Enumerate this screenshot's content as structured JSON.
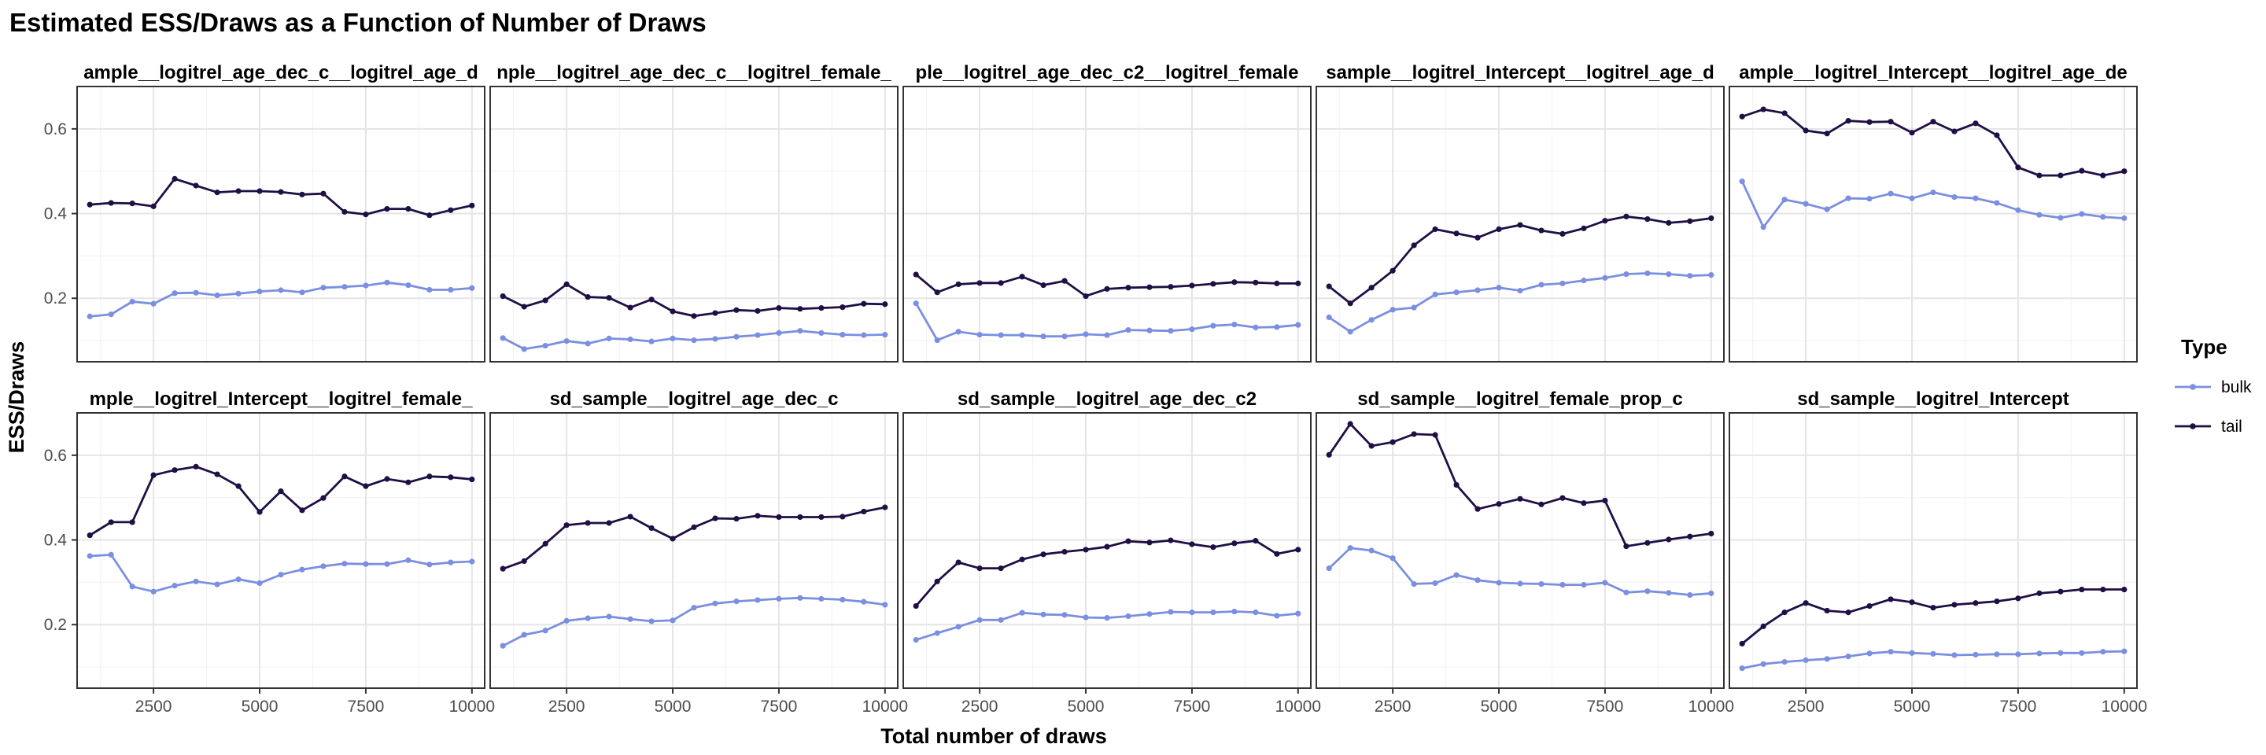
{
  "chart_data": {
    "type": "line",
    "title": "Estimated ESS/Draws as a Function of Number of Draws",
    "xlabel": "Total number of draws",
    "ylabel": "ESS/Draws",
    "x": [
      1000,
      1500,
      2000,
      2500,
      3000,
      3500,
      4000,
      4500,
      5000,
      5500,
      6000,
      6500,
      7000,
      7500,
      8000,
      8500,
      9000,
      9500,
      10000
    ],
    "xlim": [
      700,
      10300
    ],
    "ylim": [
      0.05,
      0.7
    ],
    "x_ticks": [
      2500,
      5000,
      7500,
      10000
    ],
    "y_ticks": [
      0.2,
      0.4,
      0.6
    ],
    "grid": true,
    "legend": {
      "title": "Type",
      "position": "right",
      "entries": [
        {
          "name": "bulk",
          "color": "#7b8fe0"
        },
        {
          "name": "tail",
          "color": "#1f0f45"
        }
      ]
    },
    "panels": [
      {
        "label": "ample__logitrel_age_dec_c__logitrel_age_d",
        "bulk": [
          0.157,
          0.162,
          0.192,
          0.187,
          0.212,
          0.213,
          0.207,
          0.211,
          0.216,
          0.219,
          0.214,
          0.225,
          0.227,
          0.23,
          0.237,
          0.231,
          0.22,
          0.22,
          0.224
        ],
        "tail": [
          0.421,
          0.425,
          0.424,
          0.417,
          0.482,
          0.466,
          0.45,
          0.453,
          0.453,
          0.451,
          0.445,
          0.447,
          0.404,
          0.398,
          0.411,
          0.411,
          0.396,
          0.408,
          0.419
        ]
      },
      {
        "label": "nple__logitrel_age_dec_c__logitrel_female_",
        "bulk": [
          0.106,
          0.08,
          0.088,
          0.099,
          0.093,
          0.105,
          0.103,
          0.098,
          0.105,
          0.101,
          0.104,
          0.109,
          0.113,
          0.118,
          0.123,
          0.118,
          0.114,
          0.113,
          0.114
        ],
        "tail": [
          0.205,
          0.18,
          0.195,
          0.233,
          0.203,
          0.201,
          0.178,
          0.197,
          0.169,
          0.158,
          0.165,
          0.172,
          0.17,
          0.177,
          0.175,
          0.177,
          0.179,
          0.187,
          0.186
        ]
      },
      {
        "label": "ple__logitrel_age_dec_c2__logitrel_female",
        "bulk": [
          0.188,
          0.101,
          0.121,
          0.114,
          0.113,
          0.113,
          0.11,
          0.11,
          0.115,
          0.113,
          0.125,
          0.124,
          0.123,
          0.127,
          0.135,
          0.138,
          0.131,
          0.132,
          0.137
        ],
        "tail": [
          0.256,
          0.214,
          0.233,
          0.236,
          0.236,
          0.251,
          0.231,
          0.241,
          0.205,
          0.222,
          0.225,
          0.226,
          0.227,
          0.23,
          0.234,
          0.238,
          0.237,
          0.235,
          0.235
        ]
      },
      {
        "label": "sample__logitrel_Intercept__logitrel_age_d",
        "bulk": [
          0.155,
          0.121,
          0.149,
          0.173,
          0.178,
          0.209,
          0.214,
          0.219,
          0.225,
          0.218,
          0.232,
          0.235,
          0.242,
          0.248,
          0.257,
          0.259,
          0.257,
          0.253,
          0.255
        ],
        "tail": [
          0.228,
          0.188,
          0.225,
          0.265,
          0.325,
          0.363,
          0.353,
          0.343,
          0.363,
          0.373,
          0.36,
          0.352,
          0.365,
          0.383,
          0.393,
          0.387,
          0.378,
          0.382,
          0.389
        ]
      },
      {
        "label": "ample__logitrel_Intercept__logitrel_age_de",
        "bulk": [
          0.476,
          0.368,
          0.433,
          0.423,
          0.41,
          0.436,
          0.435,
          0.447,
          0.436,
          0.45,
          0.439,
          0.436,
          0.425,
          0.408,
          0.397,
          0.39,
          0.399,
          0.392,
          0.389
        ],
        "tail": [
          0.629,
          0.646,
          0.637,
          0.596,
          0.589,
          0.619,
          0.616,
          0.617,
          0.591,
          0.617,
          0.594,
          0.613,
          0.585,
          0.509,
          0.49,
          0.49,
          0.501,
          0.49,
          0.5
        ]
      },
      {
        "label": "mple__logitrel_Intercept__logitrel_female_",
        "bulk": [
          0.362,
          0.365,
          0.29,
          0.278,
          0.292,
          0.302,
          0.295,
          0.307,
          0.298,
          0.318,
          0.33,
          0.338,
          0.344,
          0.343,
          0.343,
          0.352,
          0.342,
          0.347,
          0.349
        ],
        "tail": [
          0.411,
          0.442,
          0.442,
          0.553,
          0.565,
          0.573,
          0.555,
          0.527,
          0.466,
          0.515,
          0.47,
          0.499,
          0.55,
          0.527,
          0.544,
          0.536,
          0.55,
          0.548,
          0.543
        ]
      },
      {
        "label": "sd_sample__logitrel_age_dec_c",
        "bulk": [
          0.15,
          0.176,
          0.186,
          0.209,
          0.215,
          0.219,
          0.213,
          0.208,
          0.21,
          0.24,
          0.25,
          0.255,
          0.258,
          0.261,
          0.263,
          0.261,
          0.259,
          0.254,
          0.247
        ],
        "tail": [
          0.332,
          0.35,
          0.391,
          0.435,
          0.44,
          0.44,
          0.455,
          0.428,
          0.403,
          0.43,
          0.451,
          0.45,
          0.457,
          0.454,
          0.454,
          0.454,
          0.455,
          0.467,
          0.477
        ]
      },
      {
        "label": "sd_sample__logitrel_age_dec_c2",
        "bulk": [
          0.164,
          0.18,
          0.195,
          0.211,
          0.211,
          0.228,
          0.224,
          0.223,
          0.217,
          0.216,
          0.22,
          0.225,
          0.23,
          0.229,
          0.229,
          0.231,
          0.229,
          0.221,
          0.226
        ],
        "tail": [
          0.244,
          0.302,
          0.347,
          0.333,
          0.333,
          0.354,
          0.366,
          0.372,
          0.377,
          0.384,
          0.397,
          0.394,
          0.399,
          0.39,
          0.383,
          0.392,
          0.398,
          0.367,
          0.377
        ]
      },
      {
        "label": "sd_sample__logitrel_female_prop_c",
        "bulk": [
          0.333,
          0.381,
          0.375,
          0.357,
          0.296,
          0.298,
          0.317,
          0.305,
          0.299,
          0.297,
          0.296,
          0.294,
          0.294,
          0.299,
          0.276,
          0.279,
          0.275,
          0.27,
          0.274
        ],
        "tail": [
          0.601,
          0.674,
          0.622,
          0.631,
          0.65,
          0.648,
          0.53,
          0.473,
          0.485,
          0.497,
          0.484,
          0.499,
          0.487,
          0.493,
          0.385,
          0.393,
          0.401,
          0.408,
          0.415
        ]
      },
      {
        "label": "sd_sample__logitrel_Intercept",
        "bulk": [
          0.097,
          0.107,
          0.112,
          0.116,
          0.119,
          0.125,
          0.132,
          0.136,
          0.133,
          0.131,
          0.128,
          0.129,
          0.13,
          0.13,
          0.132,
          0.133,
          0.133,
          0.136,
          0.137
        ],
        "tail": [
          0.155,
          0.196,
          0.229,
          0.251,
          0.233,
          0.229,
          0.244,
          0.26,
          0.253,
          0.24,
          0.247,
          0.251,
          0.255,
          0.262,
          0.274,
          0.278,
          0.283,
          0.283,
          0.283
        ]
      }
    ]
  }
}
